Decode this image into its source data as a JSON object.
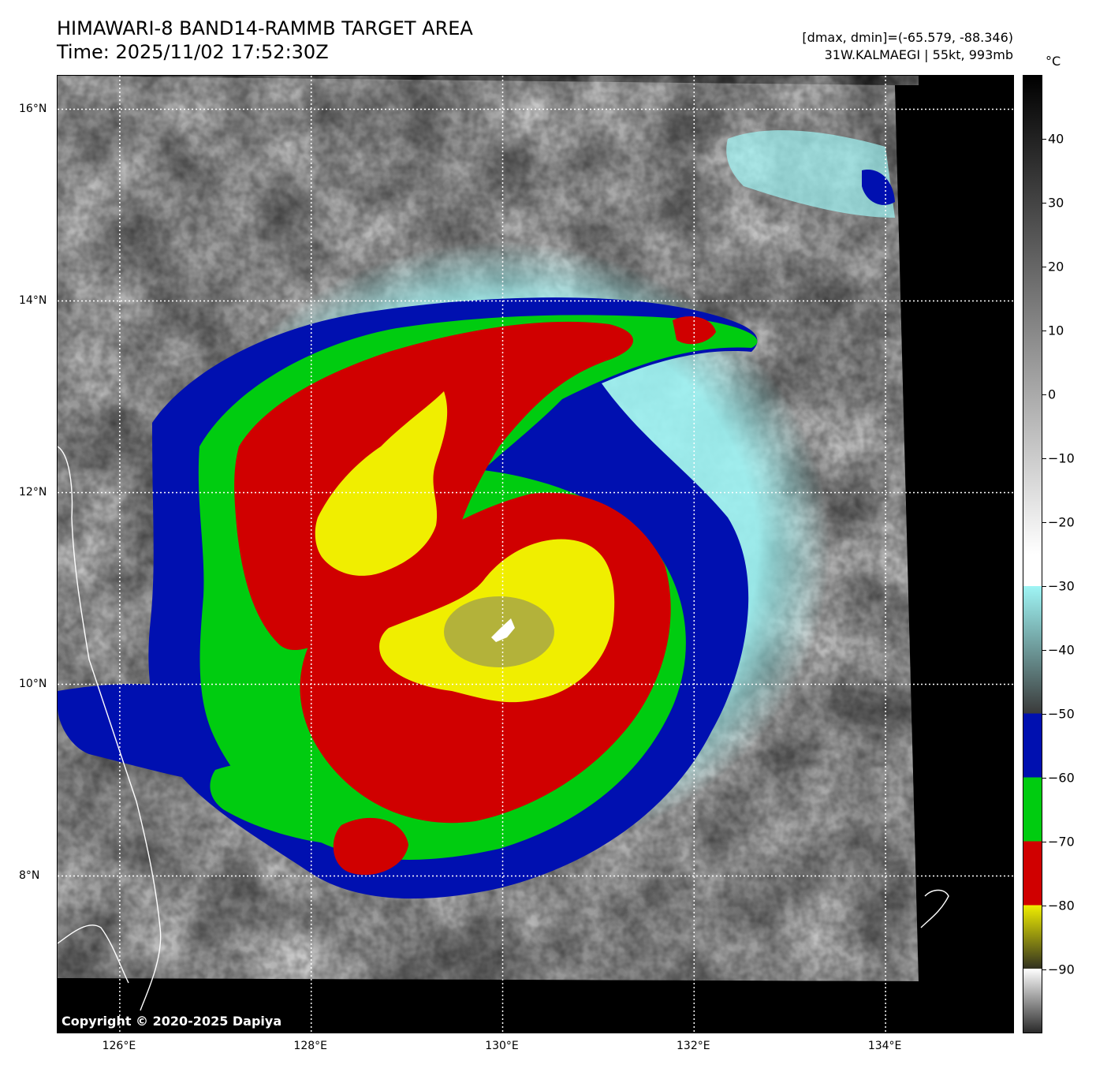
{
  "title": {
    "line1": "HIMAWARI-8 BAND14-RAMMB TARGET AREA",
    "line2": "Time: 2025/11/02 17:52:30Z"
  },
  "info": {
    "line1": "[dmax, dmin]=(-65.579, -88.346)",
    "line2": "31W.KALMAEGI | 55kt, 993mb"
  },
  "map": {
    "copyright": "Copyright © 2020-2025 Dapiya",
    "lon_ticks": [
      "126°E",
      "128°E",
      "130°E",
      "132°E",
      "134°E"
    ],
    "lat_ticks": [
      "16°N",
      "14°N",
      "12°N",
      "10°N",
      "8°N"
    ],
    "lon_values": [
      126,
      128,
      130,
      132,
      134
    ],
    "lat_values": [
      16,
      14,
      12,
      10,
      8
    ],
    "lon_range": [
      125.35,
      135.35
    ],
    "lat_range": [
      6.35,
      16.35
    ],
    "storm_center": {
      "lon": 130.1,
      "lat": 10.35
    }
  },
  "colorbar": {
    "unit": "°C",
    "ticks": [
      "40",
      "30",
      "20",
      "10",
      "0",
      "−10",
      "−20",
      "−30",
      "−40",
      "−50",
      "−60",
      "−70",
      "−80",
      "−90"
    ],
    "tick_values": [
      40,
      30,
      20,
      10,
      0,
      -10,
      -20,
      -30,
      -40,
      -50,
      -60,
      -70,
      -80,
      -90
    ],
    "range": [
      -100,
      50
    ],
    "colors": {
      "warm": "#000000",
      "cold_gray": "#ffffff",
      "cyan": "#9ff5f5",
      "blue": "#0010b0",
      "green": "#00cc10",
      "red": "#d00000",
      "yellow": "#f0ee00"
    }
  }
}
